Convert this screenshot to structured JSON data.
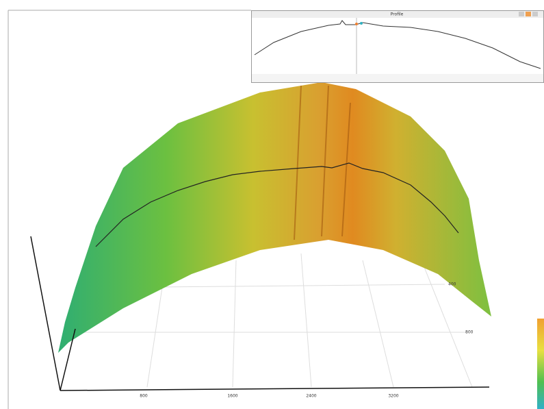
{
  "profile_window": {
    "title": "Profile"
  },
  "axes": {
    "x_ticks": [
      "800",
      "1600",
      "2400",
      "3200"
    ],
    "depth_ticks": [
      "400",
      "800"
    ]
  }
}
